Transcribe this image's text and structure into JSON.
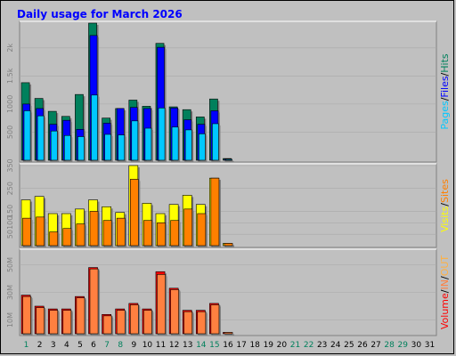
{
  "title": "Daily usage for March 2026",
  "colors": {
    "background": "#c0c0c0",
    "title": "#0000ff",
    "hits": "#00805c",
    "files": "#0000ff",
    "pages": "#00c8ff",
    "visits": "#ffff00",
    "sites": "#ff8000",
    "volume": "#ff0000",
    "in": "#ff8040",
    "out": "#ffb040",
    "day_weekday": "#000000",
    "day_weekend": "#00805c"
  },
  "chart_data": [
    {
      "type": "bar",
      "panel": "hits_files_pages",
      "label_segments": [
        {
          "text": "Pages",
          "color": "#00c8ff"
        },
        {
          "text": "/",
          "color": "#000000"
        },
        {
          "text": "Files",
          "color": "#0000ff"
        },
        {
          "text": "/",
          "color": "#000000"
        },
        {
          "text": "Hits",
          "color": "#00805c"
        }
      ],
      "yticks": [
        "500",
        "1000",
        "1.5k",
        "2k"
      ],
      "ytick_values": [
        500,
        1000,
        1500,
        2000
      ],
      "ylim": [
        0,
        2440
      ],
      "categories": [
        "1",
        "2",
        "3",
        "4",
        "5",
        "6",
        "7",
        "8",
        "9",
        "10",
        "11",
        "12",
        "13",
        "14",
        "15",
        "16",
        "17",
        "18",
        "19",
        "20",
        "21",
        "22",
        "23",
        "24",
        "25",
        "26",
        "27",
        "28",
        "29",
        "30",
        "31"
      ],
      "series": [
        {
          "name": "Hits",
          "values": [
            1380,
            1100,
            870,
            780,
            1170,
            2440,
            750,
            920,
            1070,
            960,
            2080,
            950,
            900,
            770,
            1090,
            30,
            null,
            null,
            null,
            null,
            null,
            null,
            null,
            null,
            null,
            null,
            null,
            null,
            null,
            null,
            null
          ]
        },
        {
          "name": "Files",
          "values": [
            1000,
            920,
            640,
            710,
            550,
            2220,
            660,
            920,
            940,
            920,
            2010,
            930,
            720,
            640,
            880,
            20,
            null,
            null,
            null,
            null,
            null,
            null,
            null,
            null,
            null,
            null,
            null,
            null,
            null,
            null,
            null
          ]
        },
        {
          "name": "Pages",
          "values": [
            880,
            790,
            520,
            440,
            420,
            1160,
            460,
            450,
            700,
            570,
            930,
            590,
            540,
            470,
            650,
            10,
            null,
            null,
            null,
            null,
            null,
            null,
            null,
            null,
            null,
            null,
            null,
            null,
            null,
            null,
            null
          ]
        }
      ]
    },
    {
      "type": "bar",
      "panel": "visits_sites",
      "label_segments": [
        {
          "text": "Visits",
          "color": "#ffff00"
        },
        {
          "text": "/",
          "color": "#000000"
        },
        {
          "text": "Sites",
          "color": "#ff8000"
        }
      ],
      "yticks": [
        "50",
        "100",
        "150",
        "250",
        "350"
      ],
      "ytick_values": [
        50,
        100,
        150,
        250,
        350
      ],
      "ylim": [
        0,
        350
      ],
      "categories": [
        "1",
        "2",
        "3",
        "4",
        "5",
        "6",
        "7",
        "8",
        "9",
        "10",
        "11",
        "12",
        "13",
        "14",
        "15",
        "16",
        "17",
        "18",
        "19",
        "20",
        "21",
        "22",
        "23",
        "24",
        "25",
        "26",
        "27",
        "28",
        "29",
        "30",
        "31"
      ],
      "series": [
        {
          "name": "Visits",
          "values": [
            200,
            215,
            140,
            140,
            160,
            200,
            170,
            145,
            350,
            185,
            140,
            180,
            220,
            180,
            295,
            10,
            null,
            null,
            null,
            null,
            null,
            null,
            null,
            null,
            null,
            null,
            null,
            null,
            null,
            null,
            null
          ]
        },
        {
          "name": "Sites",
          "values": [
            120,
            125,
            60,
            75,
            95,
            150,
            110,
            120,
            290,
            110,
            100,
            110,
            160,
            140,
            295,
            10,
            null,
            null,
            null,
            null,
            null,
            null,
            null,
            null,
            null,
            null,
            null,
            null,
            null,
            null,
            null
          ]
        }
      ]
    },
    {
      "type": "bar",
      "panel": "volume",
      "label_segments": [
        {
          "text": "Volume",
          "color": "#ff0000"
        },
        {
          "text": "/",
          "color": "#000000"
        },
        {
          "text": "IN",
          "color": "#ff8040"
        },
        {
          "text": "/",
          "color": "#000000"
        },
        {
          "text": "OUT",
          "color": "#ffb040"
        }
      ],
      "yticks": [
        "10M",
        "30M",
        "50M"
      ],
      "ytick_values": [
        10,
        30,
        50
      ],
      "ylim": [
        0,
        60
      ],
      "categories": [
        "1",
        "2",
        "3",
        "4",
        "5",
        "6",
        "7",
        "8",
        "9",
        "10",
        "11",
        "12",
        "13",
        "14",
        "15",
        "16",
        "17",
        "18",
        "19",
        "20",
        "21",
        "22",
        "23",
        "24",
        "25",
        "26",
        "27",
        "28",
        "29",
        "30",
        "31"
      ],
      "series": [
        {
          "name": "Volume",
          "values": [
            28,
            20,
            18,
            18,
            27,
            48,
            14,
            18,
            22,
            18,
            45,
            33,
            17,
            17,
            22,
            1,
            null,
            null,
            null,
            null,
            null,
            null,
            null,
            null,
            null,
            null,
            null,
            null,
            null,
            null,
            null
          ]
        },
        {
          "name": "Out",
          "values": [
            27,
            19,
            17,
            17,
            26,
            47,
            13,
            17,
            21,
            17,
            43,
            32,
            16,
            16,
            21,
            1,
            null,
            null,
            null,
            null,
            null,
            null,
            null,
            null,
            null,
            null,
            null,
            null,
            null,
            null,
            null
          ]
        }
      ]
    }
  ],
  "weekend_days": [
    "1",
    "7",
    "8",
    "14",
    "15",
    "21",
    "22",
    "28",
    "29"
  ]
}
